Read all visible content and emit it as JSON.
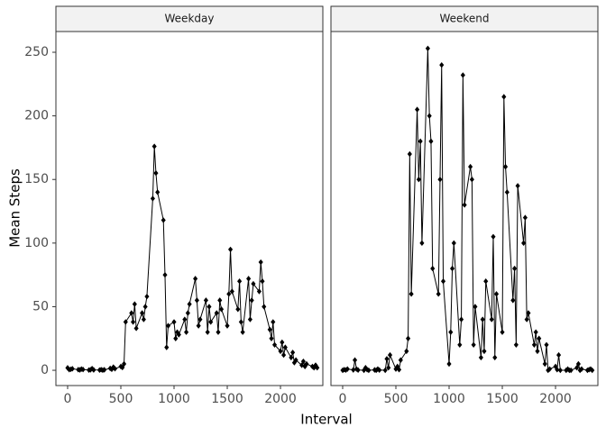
{
  "chart_data": {
    "type": "line",
    "x_label": "Interval",
    "y_label": "Mean Steps",
    "xlim": [
      -110,
      2398
    ],
    "ylim": [
      -12,
      266.3
    ],
    "xticks": [
      0,
      500,
      1000,
      1500,
      2000
    ],
    "yticks": [
      0,
      50,
      100,
      150,
      200,
      250
    ],
    "color": "#000000",
    "grid": false,
    "x": [
      0,
      15,
      30,
      45,
      100,
      115,
      130,
      145,
      200,
      215,
      230,
      245,
      300,
      315,
      330,
      345,
      400,
      415,
      430,
      445,
      500,
      515,
      530,
      545,
      600,
      615,
      630,
      645,
      700,
      715,
      730,
      745,
      800,
      815,
      830,
      845,
      900,
      915,
      930,
      945,
      1000,
      1015,
      1030,
      1045,
      1100,
      1115,
      1130,
      1145,
      1200,
      1215,
      1230,
      1245,
      1300,
      1315,
      1330,
      1345,
      1400,
      1415,
      1430,
      1445,
      1500,
      1515,
      1530,
      1545,
      1600,
      1615,
      1630,
      1645,
      1700,
      1715,
      1730,
      1745,
      1800,
      1815,
      1830,
      1845,
      1900,
      1915,
      1930,
      1945,
      2000,
      2015,
      2030,
      2045,
      2100,
      2115,
      2130,
      2145,
      2200,
      2215,
      2230,
      2245,
      2300,
      2315,
      2330,
      2345
    ],
    "facets": [
      {
        "name": "Weekday",
        "values": [
          1.9,
          0.5,
          0.8,
          1.2,
          0.5,
          0.3,
          1.0,
          0.6,
          0.2,
          0.4,
          1.3,
          0.3,
          0.2,
          0.5,
          0.1,
          0.4,
          1.5,
          0.8,
          2.5,
          1.2,
          3.0,
          2.2,
          5.0,
          38,
          45,
          38,
          52,
          33,
          45,
          40,
          50,
          58,
          135,
          176,
          155,
          140,
          118,
          75,
          18,
          35,
          38,
          25,
          30,
          28,
          40,
          30,
          45,
          52,
          72,
          55,
          35,
          40,
          55,
          30,
          50,
          38,
          45,
          30,
          55,
          48,
          35,
          60,
          95,
          62,
          48,
          70,
          38,
          30,
          72,
          40,
          55,
          68,
          62,
          85,
          70,
          50,
          32,
          25,
          38,
          20,
          15,
          22,
          12,
          18,
          10,
          14,
          6,
          8,
          4,
          7,
          3,
          5,
          3,
          2,
          4,
          2
        ]
      },
      {
        "name": "Weekend",
        "values": [
          0,
          0.5,
          0.2,
          1,
          0.3,
          8,
          1,
          0.2,
          0,
          2,
          0.5,
          0,
          0.3,
          0,
          1,
          0.2,
          0,
          9,
          2,
          12,
          1,
          3,
          0.5,
          8,
          15,
          25,
          170,
          60,
          205,
          150,
          180,
          100,
          253,
          200,
          180,
          80,
          60,
          150,
          240,
          70,
          5,
          30,
          80,
          100,
          20,
          40,
          232,
          130,
          160,
          150,
          20,
          50,
          10,
          40,
          15,
          70,
          40,
          105,
          10,
          60,
          30,
          215,
          160,
          140,
          55,
          80,
          20,
          145,
          100,
          120,
          40,
          45,
          20,
          30,
          15,
          25,
          5,
          20,
          0,
          1,
          3,
          0.5,
          12,
          0,
          0,
          1,
          0,
          0,
          2,
          5,
          0,
          1,
          0,
          0.5,
          1,
          0
        ]
      }
    ]
  }
}
